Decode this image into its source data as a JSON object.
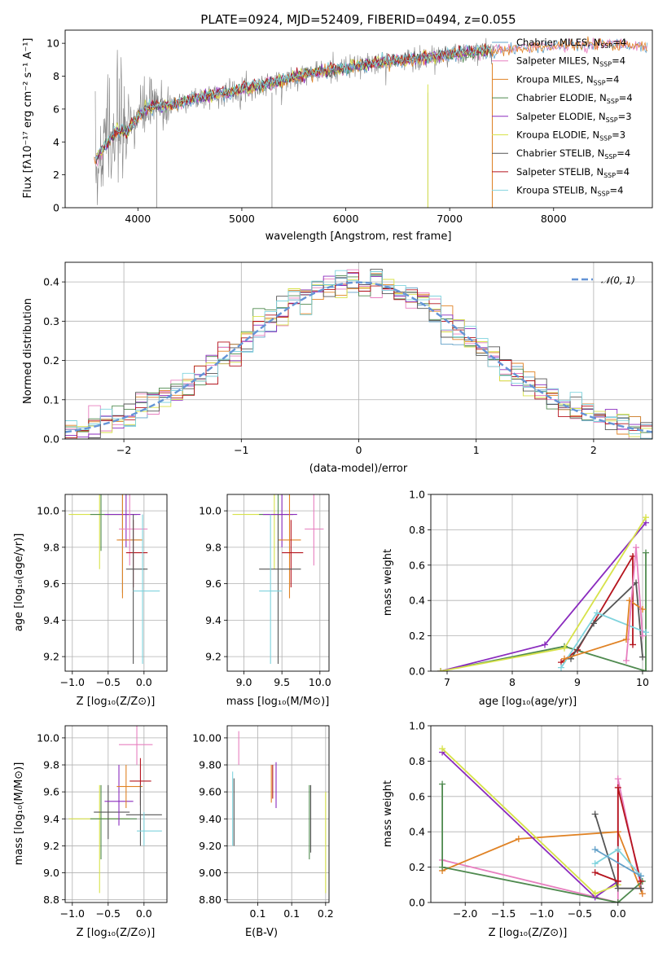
{
  "colors": {
    "Chabrier MILES": "#62a0c8",
    "Salpeter MILES": "#e77fbf",
    "Kroupa MILES": "#e08224",
    "Chabrier ELODIE": "#4f8a4f",
    "Salpeter ELODIE": "#8a2bbe",
    "Kroupa ELODIE": "#d7e24a",
    "Chabrier STELIB": "#555555",
    "Salpeter STELIB": "#b5141d",
    "Kroupa STELIB": "#7fd3dd",
    "gauss": "#6494d6",
    "data": "#808080"
  },
  "chart_data": [
    {
      "id": "spectrum",
      "type": "line",
      "title": "PLATE=0924, MJD=52409, FIBERID=0494, z=0.055",
      "xlabel": "wavelength [Angstrom, rest frame]",
      "ylabel": "Flux [fλ10⁻¹⁷ erg cm⁻² s⁻¹ A⁻¹]",
      "xlim": [
        3300,
        8950
      ],
      "ylim": [
        0,
        10.8
      ],
      "xticks": [
        4000,
        5000,
        6000,
        7000,
        8000
      ],
      "yticks": [
        0,
        2,
        4,
        6,
        8,
        10
      ],
      "legend_placement": "right",
      "legend": [
        "Chabrier MILES, N_SSP=4",
        "Salpeter MILES, N_SSP=4",
        "Kroupa MILES, N_SSP=4",
        "Chabrier ELODIE, N_SSP=4",
        "Salpeter ELODIE, N_SSP=3",
        "Kroupa ELODIE, N_SSP=3",
        "Chabrier STELIB, N_SSP=4",
        "Salpeter STELIB, N_SSP=4",
        "Kroupa STELIB, N_SSP=4"
      ],
      "continuum": {
        "x": [
          3600,
          3700,
          3800,
          3900,
          4000,
          4100,
          4300,
          4500,
          4800,
          5000,
          5300,
          5600,
          6000,
          6300,
          6600,
          7000,
          7300,
          7600,
          8000,
          8400,
          8900
        ],
        "y": [
          3.0,
          3.9,
          4.7,
          4.6,
          5.6,
          6.1,
          6.2,
          6.6,
          6.9,
          7.2,
          7.6,
          8.1,
          8.5,
          8.8,
          9.0,
          9.3,
          9.5,
          9.7,
          9.9,
          10.0,
          9.9
        ]
      }
    },
    {
      "id": "residuals",
      "type": "line",
      "xlabel": "(data-model)/error",
      "ylabel": "Normed distribution",
      "xlim": [
        -2.5,
        2.5
      ],
      "ylim": [
        0,
        0.45
      ],
      "xticks": [
        -2,
        -1,
        0,
        1,
        2
      ],
      "yticks": [
        0.0,
        0.1,
        0.2,
        0.3,
        0.4
      ],
      "legend": [
        "𝒩(0, 1)"
      ],
      "legend_placement": "top-right",
      "grid": true
    },
    {
      "id": "age_vs_Z",
      "type": "scatter",
      "xlabel": "Z [log₁₀(Z/Z⊙)]",
      "ylabel": "age  [log₁₀(age/yr)]",
      "xlim": [
        -1.1,
        0.32
      ],
      "ylim": [
        9.12,
        10.09
      ],
      "xticks": [
        -1.0,
        -0.5,
        0.0
      ],
      "yticks": [
        9.2,
        9.4,
        9.6,
        9.8,
        10.0
      ],
      "grid": true,
      "points": [
        {
          "series": "Kroupa ELODIE",
          "x": -0.62,
          "y": 9.98,
          "xlo": -1.05,
          "xhi": -0.2,
          "ylo": 9.68,
          "yhi": 10.09
        },
        {
          "series": "Chabrier ELODIE",
          "x": -0.6,
          "y": 9.98,
          "xlo": -0.75,
          "xhi": -0.1,
          "ylo": 9.78,
          "yhi": 10.09
        },
        {
          "series": "Chabrier MILES",
          "x": -0.3,
          "y": 9.84,
          "xlo": -0.35,
          "xhi": -0.05,
          "ylo": 9.55,
          "yhi": 10.09
        },
        {
          "series": "Salpeter ELODIE",
          "x": -0.25,
          "y": 9.98,
          "xlo": -0.55,
          "xhi": -0.05,
          "ylo": 9.8,
          "yhi": 10.09
        },
        {
          "series": "Kroupa MILES",
          "x": -0.3,
          "y": 9.84,
          "xlo": -0.38,
          "xhi": -0.02,
          "ylo": 9.52,
          "yhi": 10.09
        },
        {
          "series": "Salpeter MILES",
          "x": -0.2,
          "y": 9.9,
          "xlo": -0.35,
          "xhi": 0.05,
          "ylo": 9.7,
          "yhi": 10.09
        },
        {
          "series": "Salpeter STELIB",
          "x": -0.15,
          "y": 9.77,
          "xlo": -0.25,
          "xhi": 0.05,
          "ylo": 9.58,
          "yhi": 9.95
        },
        {
          "series": "Chabrier STELIB",
          "x": -0.15,
          "y": 9.68,
          "xlo": -0.25,
          "xhi": 0.05,
          "ylo": 9.16,
          "yhi": 9.98
        },
        {
          "series": "Kroupa STELIB",
          "x": -0.02,
          "y": 9.56,
          "xlo": -0.15,
          "xhi": 0.22,
          "ylo": 9.16,
          "yhi": 9.98
        }
      ]
    },
    {
      "id": "age_vs_mass",
      "type": "scatter",
      "xlabel": "mass [log₁₀(M/M⊙)]",
      "xlim": [
        8.78,
        10.12
      ],
      "ylim": [
        9.12,
        10.09
      ],
      "xticks": [
        9.0,
        9.5,
        10.0
      ],
      "yticks": [
        9.2,
        9.4,
        9.6,
        9.8,
        10.0
      ],
      "grid": true,
      "points": [
        {
          "series": "Kroupa ELODIE",
          "x": 9.4,
          "y": 9.98,
          "xlo": 8.85,
          "xhi": 9.65,
          "ylo": 9.68,
          "yhi": 10.09
        },
        {
          "series": "Chabrier ELODIE",
          "x": 9.45,
          "y": 9.98,
          "xlo": 9.2,
          "xhi": 9.65,
          "ylo": 9.78,
          "yhi": 10.09
        },
        {
          "series": "Salpeter ELODIE",
          "x": 9.5,
          "y": 9.98,
          "xlo": 9.25,
          "xhi": 9.7,
          "ylo": 9.8,
          "yhi": 10.09
        },
        {
          "series": "Salpeter MILES",
          "x": 9.92,
          "y": 9.9,
          "xlo": 9.8,
          "xhi": 10.05,
          "ylo": 9.7,
          "yhi": 10.09
        },
        {
          "series": "Kroupa MILES",
          "x": 9.6,
          "y": 9.84,
          "xlo": 9.45,
          "xhi": 9.75,
          "ylo": 9.52,
          "yhi": 10.09
        },
        {
          "series": "Salpeter STELIB",
          "x": 9.62,
          "y": 9.77,
          "xlo": 9.5,
          "xhi": 9.78,
          "ylo": 9.58,
          "yhi": 9.95
        },
        {
          "series": "Chabrier STELIB",
          "x": 9.45,
          "y": 9.68,
          "xlo": 9.2,
          "xhi": 9.75,
          "ylo": 9.16,
          "yhi": 9.98
        },
        {
          "series": "Kroupa STELIB",
          "x": 9.35,
          "y": 9.56,
          "xlo": 9.2,
          "xhi": 9.5,
          "ylo": 9.16,
          "yhi": 9.98
        }
      ]
    },
    {
      "id": "weight_vs_age",
      "type": "line",
      "xlabel": "age  [log₁₀(age/yr)]",
      "ylabel": "mass weight",
      "xlim": [
        6.75,
        10.15
      ],
      "ylim": [
        0,
        1.0
      ],
      "xticks": [
        7,
        8,
        9,
        10
      ],
      "yticks": [
        0.0,
        0.2,
        0.4,
        0.6,
        0.8,
        1.0
      ],
      "grid": true,
      "series": [
        {
          "name": "Chabrier ELODIE",
          "x": [
            6.9,
            8.8,
            10.05,
            10.05
          ],
          "y": [
            0.0,
            0.14,
            0.0,
            0.67
          ]
        },
        {
          "name": "Salpeter ELODIE",
          "x": [
            6.9,
            8.5,
            10.05
          ],
          "y": [
            0.0,
            0.15,
            0.84
          ]
        },
        {
          "name": "Kroupa ELODIE",
          "x": [
            6.9,
            8.8,
            10.05
          ],
          "y": [
            0.0,
            0.13,
            0.87
          ]
        },
        {
          "name": "Salpeter STELIB",
          "x": [
            8.75,
            9.0,
            9.85,
            9.85
          ],
          "y": [
            0.05,
            0.12,
            0.65,
            0.15
          ]
        },
        {
          "name": "Chabrier STELIB",
          "x": [
            8.9,
            9.25,
            9.9,
            10.0
          ],
          "y": [
            0.07,
            0.27,
            0.5,
            0.08
          ]
        },
        {
          "name": "Kroupa STELIB",
          "x": [
            8.75,
            9.3,
            10.05
          ],
          "y": [
            0.02,
            0.33,
            0.22
          ]
        },
        {
          "name": "Kroupa MILES",
          "x": [
            8.8,
            9.75,
            9.8,
            10.0
          ],
          "y": [
            0.07,
            0.18,
            0.4,
            0.35
          ]
        },
        {
          "name": "Salpeter MILES",
          "x": [
            9.75,
            9.9,
            10.0
          ],
          "y": [
            0.06,
            0.7,
            0.2
          ]
        }
      ]
    },
    {
      "id": "mass_vs_Z",
      "type": "scatter",
      "xlabel": "Z [log₁₀(Z/Z⊙)]",
      "ylabel": "mass [log₁₀(M/M⊙)]",
      "xlim": [
        -1.1,
        0.32
      ],
      "ylim": [
        8.78,
        10.09
      ],
      "xticks": [
        -1.0,
        -0.5,
        0.0
      ],
      "yticks": [
        8.8,
        9.0,
        9.2,
        9.4,
        9.6,
        9.8,
        10.0
      ],
      "grid": true,
      "points": [
        {
          "series": "Kroupa ELODIE",
          "x": -0.62,
          "y": 9.4,
          "xlo": -1.05,
          "xhi": -0.2,
          "ylo": 8.85,
          "yhi": 9.65
        },
        {
          "series": "Chabrier ELODIE",
          "x": -0.6,
          "y": 9.4,
          "xlo": -0.75,
          "xhi": -0.1,
          "ylo": 9.1,
          "yhi": 9.65
        },
        {
          "series": "Chabrier STELIB",
          "x": -0.5,
          "y": 9.45,
          "xlo": -0.7,
          "xhi": -0.2,
          "ylo": 9.25,
          "yhi": 9.65
        },
        {
          "series": "Salpeter ELODIE",
          "x": -0.35,
          "y": 9.53,
          "xlo": -0.55,
          "xhi": -0.15,
          "ylo": 9.35,
          "yhi": 9.8
        },
        {
          "series": "Kroupa MILES",
          "x": -0.25,
          "y": 9.64,
          "xlo": -0.38,
          "xhi": -0.02,
          "ylo": 9.48,
          "yhi": 9.8
        },
        {
          "series": "Salpeter MILES",
          "x": -0.1,
          "y": 9.95,
          "xlo": -0.35,
          "xhi": 0.12,
          "ylo": 9.8,
          "yhi": 10.09
        },
        {
          "series": "Salpeter STELIB",
          "x": -0.05,
          "y": 9.68,
          "xlo": -0.2,
          "xhi": 0.1,
          "ylo": 9.5,
          "yhi": 9.85
        },
        {
          "series": "Chabrier STELIB",
          "x": -0.05,
          "y": 9.43,
          "xlo": -0.25,
          "xhi": 0.25,
          "ylo": 9.2,
          "yhi": 9.65
        },
        {
          "series": "Kroupa STELIB",
          "x": 0.0,
          "y": 9.31,
          "xlo": -0.1,
          "xhi": 0.25,
          "ylo": 9.2,
          "yhi": 9.45
        }
      ]
    },
    {
      "id": "mass_vs_EBV",
      "type": "scatter",
      "xlabel": "E(B-V)",
      "xlim": [
        0.055,
        0.205
      ],
      "ylim": [
        8.78,
        10.09
      ],
      "xticks": [
        0.1,
        0.15,
        0.2
      ],
      "yticks": [
        8.8,
        9.0,
        9.2,
        9.4,
        9.6,
        9.8,
        10.0
      ],
      "grid": true,
      "points": [
        {
          "series": "Kroupa STELIB",
          "x": 0.063,
          "ylo": 9.2,
          "yhi": 9.75
        },
        {
          "series": "Chabrier STELIB",
          "x": 0.065,
          "ylo": 9.2,
          "yhi": 9.7
        },
        {
          "series": "Salpeter MILES",
          "x": 0.072,
          "ylo": 9.8,
          "yhi": 10.05
        },
        {
          "series": "Kroupa MILES",
          "x": 0.12,
          "ylo": 9.52,
          "yhi": 9.8
        },
        {
          "series": "Salpeter STELIB",
          "x": 0.122,
          "ylo": 9.55,
          "yhi": 9.8
        },
        {
          "series": "Salpeter ELODIE",
          "x": 0.127,
          "ylo": 9.48,
          "yhi": 9.82
        },
        {
          "series": "Chabrier ELODIE",
          "x": 0.176,
          "ylo": 9.1,
          "yhi": 9.65
        },
        {
          "series": "Chabrier STELIB",
          "x": 0.178,
          "ylo": 9.15,
          "yhi": 9.65
        },
        {
          "series": "Kroupa ELODIE",
          "x": 0.2,
          "ylo": 8.85,
          "yhi": 9.6
        }
      ]
    },
    {
      "id": "weight_vs_Z",
      "type": "line",
      "xlabel": "Z [log₁₀(Z/Z⊙)]",
      "ylabel": "mass weight",
      "xlim": [
        -2.45,
        0.45
      ],
      "ylim": [
        0,
        1.0
      ],
      "xticks": [
        -2.0,
        -1.5,
        -1.0,
        -0.5,
        0.0
      ],
      "yticks": [
        0.0,
        0.2,
        0.4,
        0.6,
        0.8,
        1.0
      ],
      "grid": true,
      "series": [
        {
          "name": "Salpeter MILES",
          "x": [
            -2.3,
            0.0,
            0.0,
            0.32
          ],
          "y": [
            0.24,
            0.0,
            0.7,
            0.05
          ]
        },
        {
          "name": "Kroupa MILES",
          "x": [
            -2.3,
            -1.3,
            0.0,
            0.32
          ],
          "y": [
            0.18,
            0.36,
            0.4,
            0.05
          ]
        },
        {
          "name": "Chabrier ELODIE",
          "x": [
            -2.3,
            -2.3,
            0.0,
            0.32
          ],
          "y": [
            0.67,
            0.2,
            0.0,
            0.12
          ]
        },
        {
          "name": "Salpeter ELODIE",
          "x": [
            -2.3,
            -0.3,
            0.0
          ],
          "y": [
            0.85,
            0.03,
            0.12
          ]
        },
        {
          "name": "Kroupa ELODIE",
          "x": [
            -2.3,
            -0.3,
            0.0
          ],
          "y": [
            0.87,
            0.05,
            0.1
          ]
        },
        {
          "name": "Chabrier STELIB",
          "x": [
            -0.3,
            0.0,
            0.3
          ],
          "y": [
            0.5,
            0.08,
            0.08
          ]
        },
        {
          "name": "Salpeter STELIB",
          "x": [
            -0.3,
            0.0,
            0.0,
            0.3
          ],
          "y": [
            0.17,
            0.12,
            0.65,
            0.12
          ]
        },
        {
          "name": "Kroupa STELIB",
          "x": [
            -0.3,
            0.0,
            0.3
          ],
          "y": [
            0.22,
            0.3,
            0.15
          ]
        },
        {
          "name": "Chabrier MILES",
          "x": [
            -0.3,
            0.3
          ],
          "y": [
            0.3,
            0.15
          ]
        }
      ]
    }
  ]
}
